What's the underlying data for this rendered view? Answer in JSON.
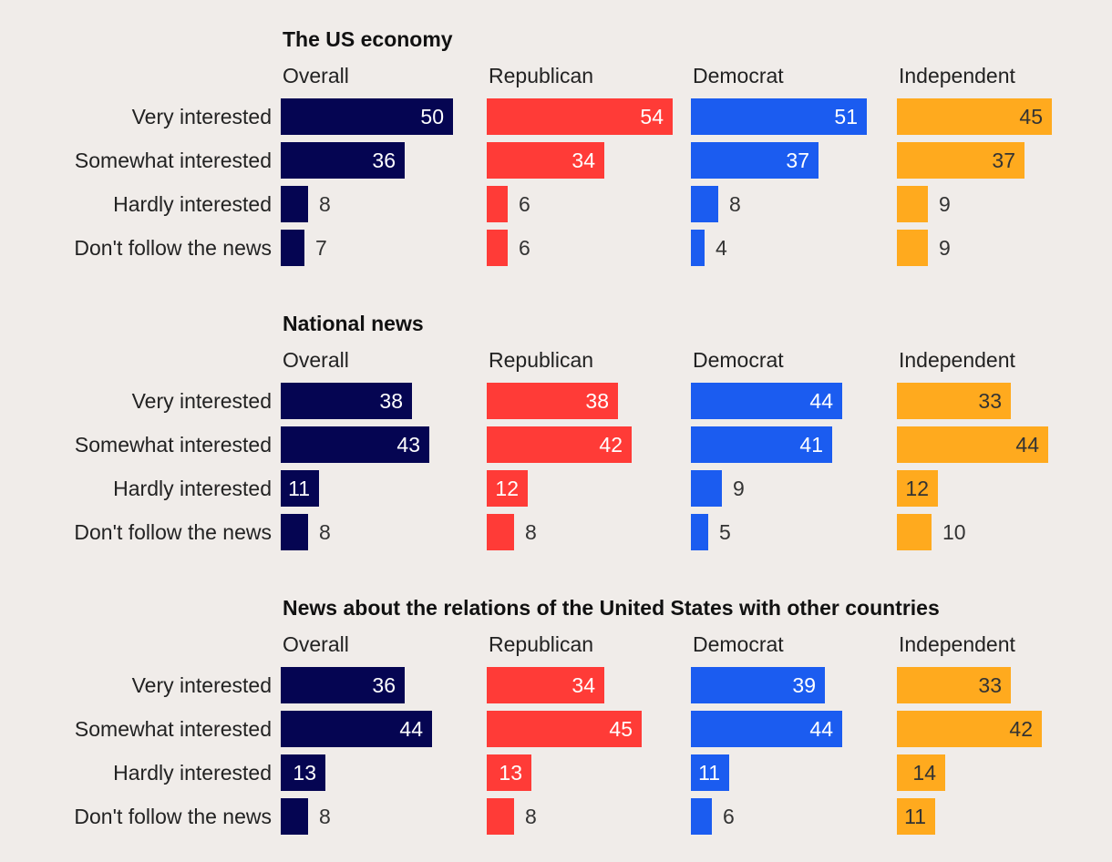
{
  "colors": {
    "Overall": "#050552",
    "Republican": "#FF3B37",
    "Democrat": "#1B5CF0",
    "Independent": "#FFAA1E"
  },
  "chart_data": {
    "type": "bar",
    "orientation": "horizontal",
    "groups": [
      "Overall",
      "Republican",
      "Democrat",
      "Independent"
    ],
    "categories": [
      "Very interested",
      "Somewhat interested",
      "Hardly interested",
      "Don't follow the news"
    ],
    "panels": [
      {
        "title": "The US economy",
        "series": [
          {
            "name": "Overall",
            "values": [
              50,
              36,
              8,
              7
            ]
          },
          {
            "name": "Republican",
            "values": [
              54,
              34,
              6,
              6
            ]
          },
          {
            "name": "Democrat",
            "values": [
              51,
              37,
              8,
              4
            ]
          },
          {
            "name": "Independent",
            "values": [
              45,
              37,
              9,
              9
            ]
          }
        ]
      },
      {
        "title": "National news",
        "series": [
          {
            "name": "Overall",
            "values": [
              38,
              43,
              11,
              8
            ]
          },
          {
            "name": "Republican",
            "values": [
              38,
              42,
              12,
              8
            ]
          },
          {
            "name": "Democrat",
            "values": [
              44,
              41,
              9,
              5
            ]
          },
          {
            "name": "Independent",
            "values": [
              33,
              44,
              12,
              10
            ]
          }
        ]
      },
      {
        "title": "News about the relations of the United States with other countries",
        "series": [
          {
            "name": "Overall",
            "values": [
              36,
              44,
              13,
              8
            ]
          },
          {
            "name": "Republican",
            "values": [
              34,
              45,
              13,
              8
            ]
          },
          {
            "name": "Democrat",
            "values": [
              39,
              44,
              11,
              6
            ]
          },
          {
            "name": "Independent",
            "values": [
              33,
              42,
              14,
              11
            ]
          }
        ]
      }
    ]
  }
}
